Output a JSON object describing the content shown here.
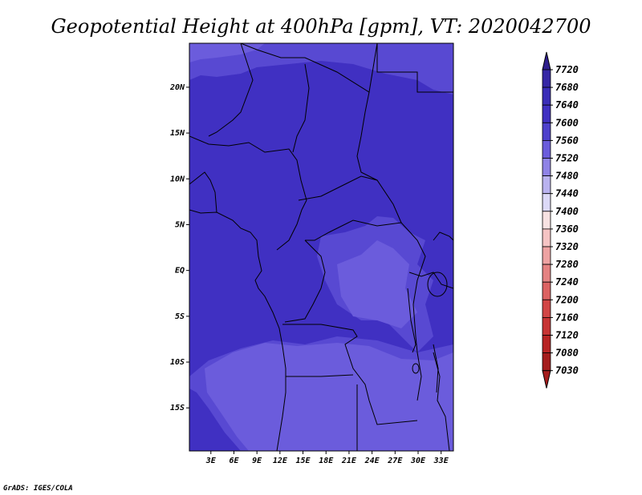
{
  "chart_data": {
    "type": "map",
    "title": "Geopotential Height at 400hPa [gpm], VT: 2020042700",
    "x_ticks": [
      "3E",
      "6E",
      "9E",
      "12E",
      "15E",
      "18E",
      "21E",
      "24E",
      "27E",
      "30E",
      "33E"
    ],
    "x_values": [
      3,
      6,
      9,
      12,
      15,
      18,
      21,
      24,
      27,
      30,
      33
    ],
    "y_ticks": [
      "20N",
      "15N",
      "10N",
      "5N",
      "EQ",
      "5S",
      "10S",
      "15S"
    ],
    "y_values": [
      20,
      15,
      10,
      5,
      0,
      -5,
      -10,
      -15
    ],
    "lon_range": [
      0.2,
      34.6
    ],
    "lat_range": [
      -19.7,
      24.8
    ],
    "colorbar": {
      "levels": [
        "7720",
        "7680",
        "7640",
        "7600",
        "7560",
        "7520",
        "7480",
        "7440",
        "7400",
        "7360",
        "7320",
        "7280",
        "7240",
        "7200",
        "7160",
        "7120",
        "7080",
        "7030"
      ],
      "colors": [
        "#2e1e8c",
        "#3627a6",
        "#3a2db8",
        "#4030c2",
        "#4e41cc",
        "#6b5cdc",
        "#8f83e6",
        "#b9b2ef",
        "#dcd9f7",
        "#f7e2e2",
        "#f5c4c4",
        "#eea3a3",
        "#e58282",
        "#dc6262",
        "#d24646",
        "#c73434",
        "#b82424",
        "#a51c1c"
      ]
    },
    "field_colors": {
      "v7600": "#4030c2",
      "v7560": "#5849d2",
      "v7520": "#6b5cdc"
    }
  },
  "credit": "GrADS: IGES/COLA"
}
